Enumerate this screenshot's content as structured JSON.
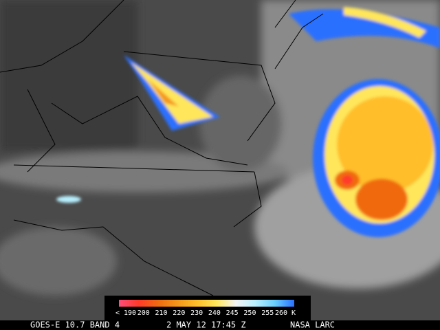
{
  "colorbar": {
    "labels": [
      "< 190",
      "200",
      "210",
      "220",
      "230",
      "240",
      "245",
      "250",
      "255",
      "260 K"
    ],
    "colors": [
      "#ff4d7a",
      "#ff3a2a",
      "#f06a10",
      "#f5961a",
      "#ffbe2a",
      "#ffe65a",
      "#f4f4f4",
      "#b8f0ff",
      "#6ad0ff",
      "#2a70ff"
    ]
  },
  "footer": {
    "product": "GOES-E 10.7 BAND 4",
    "time": "2 MAY 12 17:45 Z",
    "source": "NASA LARC"
  }
}
